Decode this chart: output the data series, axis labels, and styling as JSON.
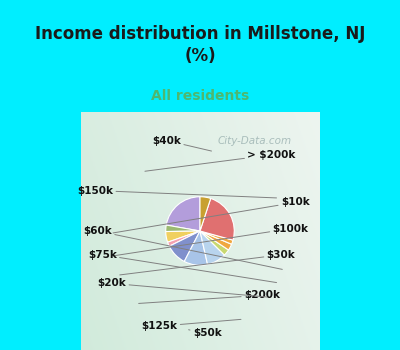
{
  "title": "Income distribution in Millstone, NJ\n(%)",
  "subtitle": "All residents",
  "title_color": "#1a1a1a",
  "subtitle_color": "#4db870",
  "background_cyan": "#00eeff",
  "watermark": "City-Data.com",
  "labels": [
    "> $200k",
    "$10k",
    "$100k",
    "$30k",
    "$200k",
    "$50k",
    "$125k",
    "$20k",
    "$75k",
    "$60k",
    "$150k",
    "$40k"
  ],
  "values": [
    22,
    3,
    5,
    2,
    10,
    11,
    9,
    3,
    3,
    2,
    24,
    5
  ],
  "colors": [
    "#b39ddb",
    "#9cba72",
    "#f0d060",
    "#f4a0b0",
    "#8090cc",
    "#a8c4e8",
    "#b8d4ee",
    "#c8d870",
    "#f0a840",
    "#f0a840",
    "#e07070",
    "#c8a030"
  ],
  "startangle": 90,
  "figsize": [
    4.0,
    3.5
  ],
  "dpi": 100
}
